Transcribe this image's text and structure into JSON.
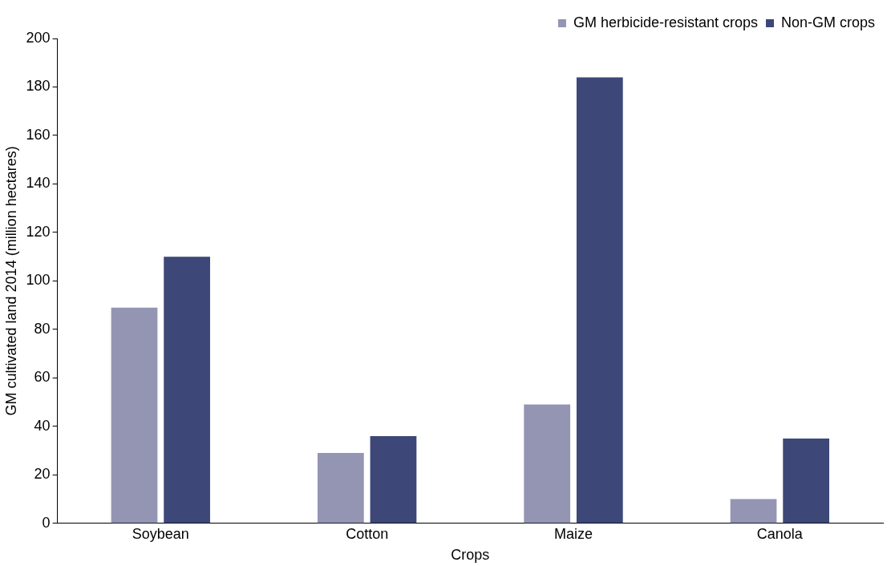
{
  "chart_data": {
    "type": "bar",
    "xlabel": "Crops",
    "ylabel": "GM cultivated land 2014 (million hectares)",
    "categories": [
      "Soybean",
      "Cotton",
      "Maize",
      "Canola"
    ],
    "series": [
      {
        "name": "GM herbicide-resistant crops",
        "color": "#9495b3",
        "values": [
          89,
          29,
          49,
          10
        ]
      },
      {
        "name": "Non-GM crops",
        "color": "#3d4878",
        "values": [
          110,
          36,
          184,
          35
        ]
      }
    ],
    "ylim": [
      0,
      200
    ],
    "yticks": [
      0,
      20,
      40,
      60,
      80,
      100,
      120,
      140,
      160,
      180,
      200
    ],
    "grid": false,
    "legend": "top right"
  }
}
